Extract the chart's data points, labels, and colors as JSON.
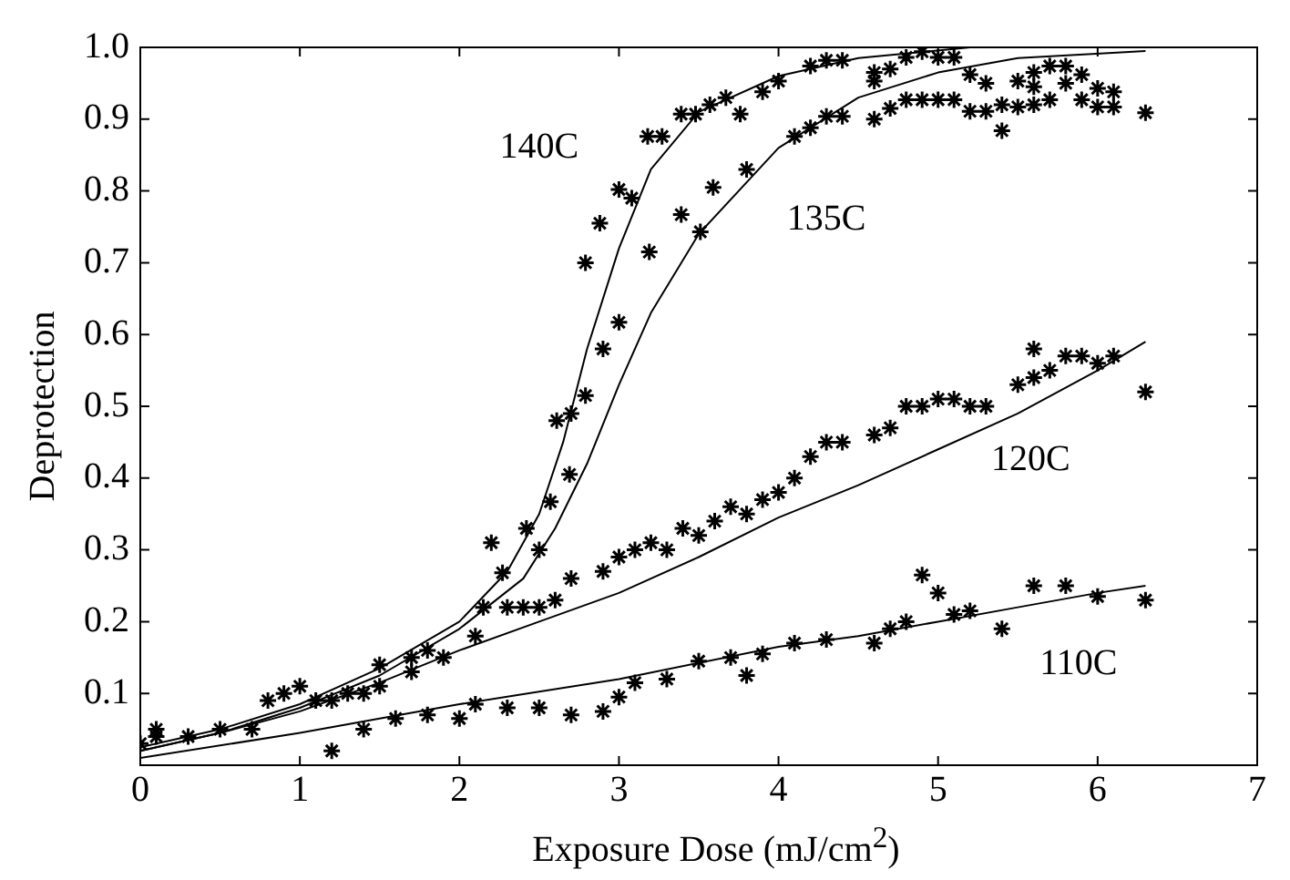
{
  "chart_data": {
    "type": "scatter",
    "xlabel": "Exposure Dose (mJ/cm$^{2}$)",
    "ylabel": "Deprotection",
    "xlim": [
      0,
      7
    ],
    "xticks": [
      0,
      1,
      2,
      3,
      4,
      5,
      6,
      7
    ],
    "ylim": [
      0,
      1
    ],
    "yticks": [
      0.1,
      0.2,
      0.3,
      0.4,
      0.5,
      0.6,
      0.7,
      0.8,
      0.9,
      {
        "value": 1,
        "label": "1.0"
      }
    ],
    "grid": false,
    "legend": false,
    "marker": "cross",
    "series": [
      {
        "color": "#000000",
        "x": [
          0,
          0.1,
          0.7,
          1.2,
          1.4,
          1.6,
          1.8,
          2,
          2.1,
          2.3,
          2.5,
          2.7,
          2.9,
          3,
          3.1,
          3.3,
          3.5,
          3.7,
          3.8,
          3.9,
          4.1,
          4.3,
          4.6,
          4.7,
          4.8,
          4.9,
          5,
          5.1,
          5.2,
          5.4,
          5.6,
          5.8,
          6,
          6.3
        ],
        "values": [
          0.03,
          0.04,
          0.05,
          0.02,
          0.05,
          0.065,
          0.07,
          0.065,
          0.085,
          0.08,
          0.08,
          0.07,
          0.075,
          0.095,
          0.115,
          0.12,
          0.145,
          0.15,
          0.125,
          0.155,
          0.17,
          0.175,
          0.17,
          0.19,
          0.2,
          0.265,
          0.24,
          0.21,
          0.215,
          0.19,
          0.25,
          0.25,
          0.235,
          0.23
        ]
      },
      {
        "color": "#000000",
        "x": [
          0.1,
          0.8,
          1.2,
          1.4,
          1.5,
          1.7,
          1.9,
          2.1,
          2.3,
          2.4,
          2.5,
          2.6,
          2.7,
          2.9,
          3,
          3.1,
          3.2,
          3.3,
          3.4,
          3.5,
          3.6,
          3.7,
          3.8,
          3.9,
          4,
          4.1,
          4.2,
          4.3,
          4.4,
          4.6,
          4.7,
          4.8,
          4.9,
          5,
          5.1,
          5.2,
          5.3,
          5.5,
          5.6,
          5.6,
          5.7,
          5.8,
          5.9,
          6,
          6.1,
          6.3
        ],
        "values": [
          0.05,
          0.09,
          0.09,
          0.1,
          0.11,
          0.13,
          0.15,
          0.18,
          0.22,
          0.22,
          0.22,
          0.23,
          0.26,
          0.27,
          0.29,
          0.3,
          0.31,
          0.3,
          0.33,
          0.32,
          0.34,
          0.36,
          0.35,
          0.37,
          0.38,
          0.4,
          0.43,
          0.45,
          0.45,
          0.46,
          0.47,
          0.5,
          0.5,
          0.51,
          0.51,
          0.5,
          0.5,
          0.53,
          0.54,
          0.58,
          0.55,
          0.57,
          0.57,
          0.56,
          0.57,
          0.52
        ]
      },
      {
        "color": "#000000",
        "x": [
          0.5,
          0.9,
          1.1,
          1.5,
          1.8,
          2.2,
          2.5,
          2.57,
          2.69,
          2.79,
          2.9,
          3,
          3.19,
          3.39,
          3.51,
          3.59,
          3.8,
          4.1,
          4.2,
          4.3,
          4.4,
          4.6,
          4.7,
          4.8,
          4.9,
          5,
          5.1,
          5.2,
          5.3,
          5.4,
          5.4,
          5.5,
          5.6,
          5.7,
          5.9,
          6,
          6.1,
          6.3
        ],
        "values": [
          0.05,
          0.1,
          0.09,
          0.14,
          0.16,
          0.31,
          0.3,
          0.367,
          0.405,
          0.515,
          0.58,
          0.617,
          0.715,
          0.767,
          0.743,
          0.805,
          0.83,
          0.876,
          0.888,
          0.904,
          0.904,
          0.9,
          0.915,
          0.927,
          0.927,
          0.927,
          0.927,
          0.911,
          0.911,
          0.884,
          0.92,
          0.917,
          0.92,
          0.927,
          0.927,
          0.917,
          0.917,
          0.909
        ]
      },
      {
        "color": "#000000",
        "x": [
          0.3,
          1,
          1.3,
          1.7,
          2.15,
          2.27,
          2.42,
          2.61,
          2.7,
          2.79,
          2.88,
          3,
          3.08,
          3.18,
          3.27,
          3.39,
          3.48,
          3.57,
          3.67,
          3.76,
          3.9,
          4,
          4.2,
          4.3,
          4.4,
          4.6,
          4.6,
          4.7,
          4.8,
          4.9,
          5,
          5.1,
          5.2,
          5.3,
          5.5,
          5.6,
          5.6,
          5.7,
          5.8,
          5.8,
          5.9,
          6,
          6.1
        ],
        "values": [
          0.04,
          0.11,
          0.1,
          0.15,
          0.22,
          0.268,
          0.33,
          0.48,
          0.49,
          0.7,
          0.755,
          0.802,
          0.79,
          0.876,
          0.876,
          0.907,
          0.907,
          0.92,
          0.93,
          0.907,
          0.938,
          0.953,
          0.974,
          0.982,
          0.982,
          0.965,
          0.953,
          0.97,
          0.986,
          0.994,
          0.986,
          0.986,
          0.962,
          0.95,
          0.953,
          0.965,
          0.945,
          0.974,
          0.974,
          0.95,
          0.962,
          0.943,
          0.938
        ]
      },
      {
        "name": "110C",
        "type": "line",
        "color": "#000000",
        "marker": "none",
        "x": [
          0,
          1,
          2,
          3,
          4,
          4.5,
          5,
          5.5,
          6,
          6.3
        ],
        "values": [
          0.01,
          0.045,
          0.085,
          0.12,
          0.165,
          0.18,
          0.2,
          0.22,
          0.24,
          0.25
        ]
      },
      {
        "name": "120C",
        "type": "line",
        "color": "#000000",
        "marker": "none",
        "x": [
          0,
          0.5,
          1,
          1.5,
          2,
          2.5,
          3,
          3.5,
          4,
          4.5,
          5,
          5.5,
          6,
          6.3
        ],
        "values": [
          0.02,
          0.045,
          0.075,
          0.115,
          0.16,
          0.2,
          0.24,
          0.29,
          0.345,
          0.39,
          0.44,
          0.49,
          0.55,
          0.59
        ]
      },
      {
        "name": "135C",
        "type": "line",
        "color": "#000000",
        "marker": "none",
        "x": [
          0,
          0.5,
          1,
          1.5,
          2,
          2.4,
          2.6,
          2.8,
          3,
          3.2,
          3.5,
          4,
          4.5,
          5,
          5.5,
          6.3
        ],
        "values": [
          0.02,
          0.045,
          0.08,
          0.125,
          0.19,
          0.26,
          0.33,
          0.42,
          0.53,
          0.63,
          0.74,
          0.86,
          0.93,
          0.965,
          0.985,
          0.995
        ]
      },
      {
        "name": "140C",
        "type": "line",
        "color": "#000000",
        "marker": "none",
        "x": [
          0,
          0.5,
          1,
          1.5,
          2,
          2.3,
          2.5,
          2.65,
          2.8,
          3,
          3.2,
          3.5,
          4,
          4.5,
          5.2
        ],
        "values": [
          0.025,
          0.05,
          0.085,
          0.135,
          0.2,
          0.27,
          0.35,
          0.45,
          0.58,
          0.72,
          0.83,
          0.91,
          0.96,
          0.985,
          1
        ]
      }
    ]
  }
}
